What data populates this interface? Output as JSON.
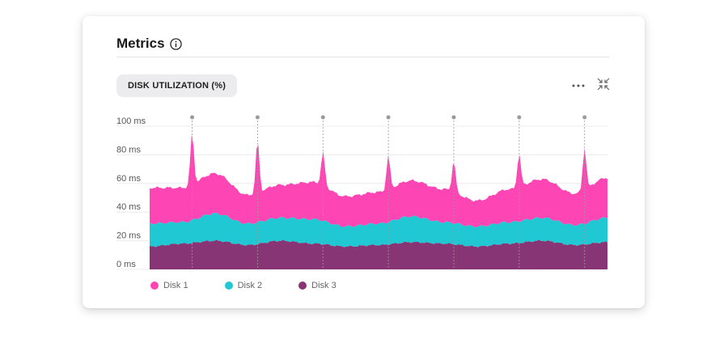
{
  "card": {
    "title": "Metrics",
    "metric_chip": "DISK UTILIZATION (%)"
  },
  "icons": {
    "info": "info-icon",
    "more": "more-horizontal-icon",
    "collapse": "collapse-icon"
  },
  "colors": {
    "disk1": "#fd45b4",
    "disk2": "#1fc8d3",
    "disk3": "#873574"
  },
  "chart_data": {
    "type": "area",
    "stacked": true,
    "title": "",
    "xlabel": "",
    "ylabel": "",
    "ylim": [
      0,
      100
    ],
    "y_ticks": [
      "0 ms",
      "20 ms",
      "40 ms",
      "60 ms",
      "80 ms",
      "100 ms"
    ],
    "y_tick_values": [
      0,
      20,
      40,
      60,
      80,
      100
    ],
    "grid": true,
    "legend_position": "bottom-left",
    "x": [
      0,
      0.5,
      1,
      1.5,
      2,
      2.5,
      3,
      3.5,
      4,
      4.5,
      5,
      5.5,
      6,
      6.5,
      7
    ],
    "spike_markers_x": [
      0.65,
      1.65,
      2.65,
      3.65,
      4.65,
      5.65,
      6.65
    ],
    "series": [
      {
        "name": "Disk 3",
        "values": [
          16,
          18,
          20,
          17,
          20,
          18,
          16,
          17,
          19,
          18,
          16,
          18,
          20,
          17,
          19
        ]
      },
      {
        "name": "Disk 2",
        "values": [
          16,
          15,
          19,
          15,
          16,
          17,
          14,
          15,
          18,
          15,
          14,
          15,
          16,
          14,
          17
        ]
      },
      {
        "name": "Disk 1",
        "values": [
          25,
          24,
          28,
          20,
          23,
          26,
          21,
          22,
          25,
          23,
          18,
          23,
          27,
          22,
          28
        ]
      }
    ],
    "spike_totals": [
      96,
      91,
      83,
      80,
      76,
      81,
      85
    ]
  },
  "legend": [
    {
      "label": "Disk 1",
      "color": "#fd45b4"
    },
    {
      "label": "Disk 2",
      "color": "#1fc8d3"
    },
    {
      "label": "Disk 3",
      "color": "#873574"
    }
  ]
}
